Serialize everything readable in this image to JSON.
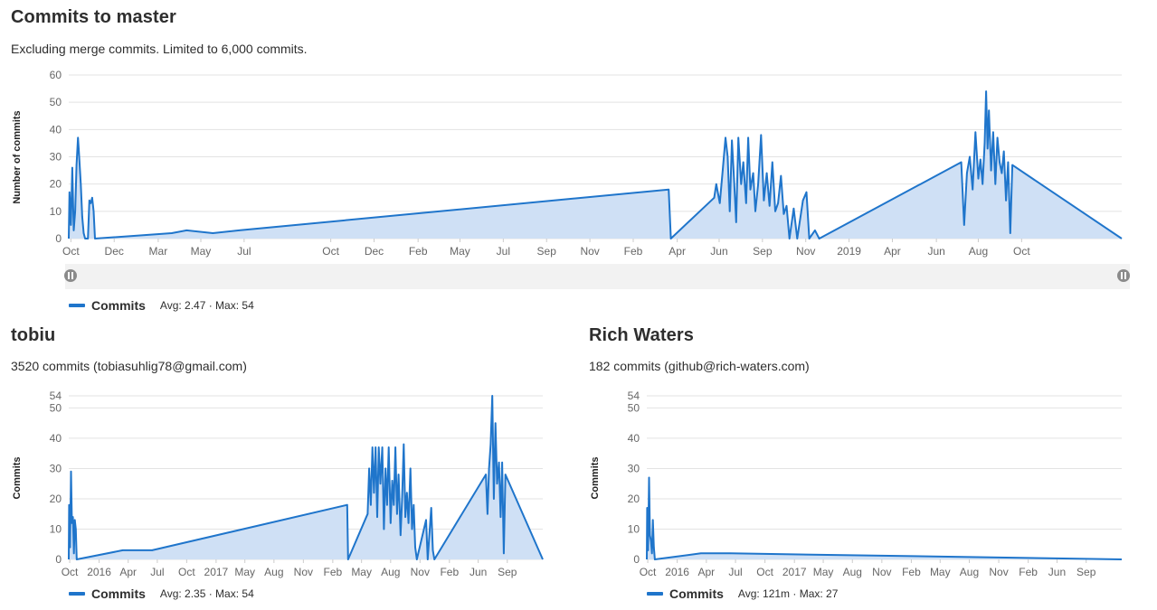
{
  "master": {
    "title": "Commits to master",
    "subtitle": "Excluding merge commits. Limited to 6,000 commits.",
    "legend_name": "Commits",
    "legend_stats": "Avg: 2.47 · Max: 54"
  },
  "tobiu": {
    "title": "tobiu",
    "subtitle": "3520 commits (tobiasuhlig78@gmail.com)",
    "legend_name": "Commits",
    "legend_stats": "Avg: 2.35 · Max: 54"
  },
  "rich": {
    "title": "Rich Waters",
    "subtitle": "182 commits (github@rich-waters.com)",
    "legend_name": "Commits",
    "legend_stats": "Avg: 121m · Max: 27"
  },
  "colors": {
    "line": "#1f75cb",
    "area": "#cfe0f5",
    "grid": "#e3e3e3",
    "zoom_bg": "#f0f0f0"
  },
  "chart_data": [
    {
      "type": "area",
      "ylabel": "Number of commits",
      "ylim": [
        0,
        60
      ],
      "yticks": [
        0,
        10,
        20,
        30,
        40,
        50,
        60
      ],
      "xlim": [
        "2015-09-28",
        "2019-10-20"
      ],
      "xticks": [
        {
          "date": "2015-10-01",
          "label": "Oct"
        },
        {
          "date": "2015-12-01",
          "label": "Dec"
        },
        {
          "date": "2016-02-01",
          "label": "Mar"
        },
        {
          "date": "2016-04-01",
          "label": "May"
        },
        {
          "date": "2016-06-01",
          "label": "Jul"
        },
        {
          "date": "2016-10-01",
          "label": "Oct"
        },
        {
          "date": "2016-12-01",
          "label": "Dec"
        },
        {
          "date": "2017-02-01",
          "label": "Feb"
        },
        {
          "date": "2017-04-01",
          "label": "May"
        },
        {
          "date": "2017-06-01",
          "label": "Jul"
        },
        {
          "date": "2017-08-01",
          "label": "Sep"
        },
        {
          "date": "2017-10-01",
          "label": "Nov"
        },
        {
          "date": "2017-12-01",
          "label": "Feb"
        },
        {
          "date": "2018-02-01",
          "label": "Apr"
        },
        {
          "date": "2018-04-01",
          "label": "Jun"
        },
        {
          "date": "2018-06-01",
          "label": "Sep"
        },
        {
          "date": "2018-08-01",
          "label": "Nov"
        },
        {
          "date": "2018-10-01",
          "label": "2019"
        },
        {
          "date": "2018-12-01",
          "label": "Apr"
        },
        {
          "date": "2019-02-01",
          "label": "Jun"
        },
        {
          "date": "2019-04-01",
          "label": "Aug"
        },
        {
          "date": "2019-06-01",
          "label": "Oct"
        }
      ],
      "series": [
        {
          "name": "Commits",
          "points": [
            [
              "2015-09-29",
              17
            ],
            [
              "2015-10-01",
              5
            ],
            [
              "2015-10-03",
              26
            ],
            [
              "2015-10-05",
              3
            ],
            [
              "2015-10-07",
              10
            ],
            [
              "2015-10-09",
              27
            ],
            [
              "2015-10-11",
              37
            ],
            [
              "2015-10-12",
              33
            ],
            [
              "2015-10-14",
              24
            ],
            [
              "2015-10-15",
              20
            ],
            [
              "2015-10-17",
              8
            ],
            [
              "2015-10-19",
              2
            ],
            [
              "2015-10-21",
              0
            ],
            [
              "2015-10-25",
              0
            ],
            [
              "2015-10-27",
              14
            ],
            [
              "2015-10-29",
              13
            ],
            [
              "2015-10-31",
              15
            ],
            [
              "2015-11-02",
              10
            ],
            [
              "2015-11-04",
              0
            ],
            [
              "2016-02-20",
              2
            ],
            [
              "2016-03-12",
              3
            ],
            [
              "2016-04-18",
              2
            ],
            [
              "2016-05-25",
              3
            ],
            [
              "2018-01-20",
              18
            ],
            [
              "2018-01-23",
              0
            ],
            [
              "2018-03-25",
              15
            ],
            [
              "2018-03-28",
              20
            ],
            [
              "2018-04-02",
              13
            ],
            [
              "2018-04-06",
              25
            ],
            [
              "2018-04-10",
              37
            ],
            [
              "2018-04-13",
              30
            ],
            [
              "2018-04-16",
              10
            ],
            [
              "2018-04-19",
              36
            ],
            [
              "2018-04-22",
              22
            ],
            [
              "2018-04-25",
              6
            ],
            [
              "2018-04-28",
              37
            ],
            [
              "2018-05-02",
              20
            ],
            [
              "2018-05-05",
              28
            ],
            [
              "2018-05-09",
              13
            ],
            [
              "2018-05-12",
              37
            ],
            [
              "2018-05-15",
              18
            ],
            [
              "2018-05-19",
              24
            ],
            [
              "2018-05-22",
              10
            ],
            [
              "2018-05-26",
              20
            ],
            [
              "2018-05-30",
              38
            ],
            [
              "2018-06-03",
              14
            ],
            [
              "2018-06-07",
              24
            ],
            [
              "2018-06-11",
              12
            ],
            [
              "2018-06-15",
              28
            ],
            [
              "2018-06-19",
              10
            ],
            [
              "2018-06-23",
              13
            ],
            [
              "2018-06-27",
              23
            ],
            [
              "2018-07-01",
              9
            ],
            [
              "2018-07-05",
              12
            ],
            [
              "2018-07-09",
              0
            ],
            [
              "2018-07-15",
              11
            ],
            [
              "2018-07-20",
              0
            ],
            [
              "2018-07-28",
              14
            ],
            [
              "2018-08-02",
              17
            ],
            [
              "2018-08-06",
              0
            ],
            [
              "2018-08-14",
              3
            ],
            [
              "2018-08-20",
              0
            ],
            [
              "2019-03-08",
              28
            ],
            [
              "2019-03-12",
              5
            ],
            [
              "2019-03-16",
              24
            ],
            [
              "2019-03-20",
              30
            ],
            [
              "2019-03-24",
              18
            ],
            [
              "2019-03-28",
              39
            ],
            [
              "2019-04-01",
              22
            ],
            [
              "2019-04-04",
              29
            ],
            [
              "2019-04-07",
              20
            ],
            [
              "2019-04-10",
              35
            ],
            [
              "2019-04-12",
              54
            ],
            [
              "2019-04-14",
              33
            ],
            [
              "2019-04-16",
              47
            ],
            [
              "2019-04-19",
              25
            ],
            [
              "2019-04-22",
              39
            ],
            [
              "2019-04-25",
              20
            ],
            [
              "2019-04-28",
              37
            ],
            [
              "2019-05-01",
              28
            ],
            [
              "2019-05-04",
              24
            ],
            [
              "2019-05-07",
              32
            ],
            [
              "2019-05-10",
              14
            ],
            [
              "2019-05-13",
              28
            ],
            [
              "2019-05-16",
              2
            ],
            [
              "2019-05-19",
              27
            ]
          ]
        }
      ]
    },
    {
      "type": "area",
      "ylabel": "Commits",
      "ylim": [
        0,
        54
      ],
      "yticks": [
        0,
        10,
        20,
        30,
        40,
        50,
        54
      ],
      "xlim": [
        "2015-09-28",
        "2019-10-20"
      ],
      "xticks": [
        {
          "date": "2015-10-01",
          "label": "Oct"
        },
        {
          "date": "2016-01-01",
          "label": "2016"
        },
        {
          "date": "2016-04-01",
          "label": "Apr"
        },
        {
          "date": "2016-07-01",
          "label": "Jul"
        },
        {
          "date": "2016-10-01",
          "label": "Oct"
        },
        {
          "date": "2017-01-01",
          "label": "2017"
        },
        {
          "date": "2017-04-01",
          "label": "May"
        },
        {
          "date": "2017-07-01",
          "label": "Aug"
        },
        {
          "date": "2017-10-01",
          "label": "Nov"
        },
        {
          "date": "2018-01-01",
          "label": "Feb"
        },
        {
          "date": "2018-04-01",
          "label": "May"
        },
        {
          "date": "2018-07-01",
          "label": "Aug"
        },
        {
          "date": "2018-10-01",
          "label": "Nov"
        },
        {
          "date": "2019-01-01",
          "label": "Feb"
        },
        {
          "date": "2019-04-01",
          "label": "Jun"
        },
        {
          "date": "2019-07-01",
          "label": "Sep"
        }
      ],
      "series": [
        {
          "name": "Commits",
          "points": [
            [
              "2015-09-29",
              18
            ],
            [
              "2015-10-02",
              4
            ],
            [
              "2015-10-05",
              29
            ],
            [
              "2015-10-08",
              12
            ],
            [
              "2015-10-11",
              14
            ],
            [
              "2015-10-14",
              2
            ],
            [
              "2015-10-17",
              13
            ],
            [
              "2015-10-20",
              10
            ],
            [
              "2015-10-23",
              0
            ],
            [
              "2016-03-15",
              3
            ],
            [
              "2016-06-15",
              3
            ],
            [
              "2018-02-15",
              18
            ],
            [
              "2018-02-18",
              0
            ],
            [
              "2018-04-20",
              15
            ],
            [
              "2018-04-25",
              30
            ],
            [
              "2018-04-30",
              18
            ],
            [
              "2018-05-05",
              37
            ],
            [
              "2018-05-10",
              22
            ],
            [
              "2018-05-15",
              37
            ],
            [
              "2018-05-20",
              14
            ],
            [
              "2018-05-25",
              37
            ],
            [
              "2018-05-30",
              25
            ],
            [
              "2018-06-05",
              37
            ],
            [
              "2018-06-10",
              10
            ],
            [
              "2018-06-15",
              30
            ],
            [
              "2018-06-20",
              18
            ],
            [
              "2018-06-25",
              37
            ],
            [
              "2018-07-01",
              12
            ],
            [
              "2018-07-06",
              26
            ],
            [
              "2018-07-11",
              18
            ],
            [
              "2018-07-16",
              37
            ],
            [
              "2018-07-21",
              15
            ],
            [
              "2018-07-26",
              28
            ],
            [
              "2018-08-01",
              8
            ],
            [
              "2018-08-06",
              20
            ],
            [
              "2018-08-11",
              38
            ],
            [
              "2018-08-16",
              14
            ],
            [
              "2018-08-21",
              22
            ],
            [
              "2018-08-26",
              12
            ],
            [
              "2018-09-01",
              30
            ],
            [
              "2018-09-06",
              10
            ],
            [
              "2018-09-11",
              18
            ],
            [
              "2018-09-16",
              4
            ],
            [
              "2018-09-21",
              0
            ],
            [
              "2018-10-20",
              13
            ],
            [
              "2018-10-25",
              0
            ],
            [
              "2018-11-05",
              17
            ],
            [
              "2018-11-10",
              3
            ],
            [
              "2018-11-15",
              0
            ],
            [
              "2019-04-25",
              28
            ],
            [
              "2019-04-30",
              15
            ],
            [
              "2019-05-05",
              30
            ],
            [
              "2019-05-10",
              38
            ],
            [
              "2019-05-15",
              54
            ],
            [
              "2019-05-20",
              20
            ],
            [
              "2019-05-25",
              45
            ],
            [
              "2019-05-30",
              25
            ],
            [
              "2019-06-05",
              32
            ],
            [
              "2019-06-10",
              14
            ],
            [
              "2019-06-15",
              32
            ],
            [
              "2019-06-20",
              2
            ],
            [
              "2019-06-25",
              28
            ]
          ]
        }
      ]
    },
    {
      "type": "area",
      "ylabel": "Commits",
      "ylim": [
        0,
        54
      ],
      "yticks": [
        0,
        10,
        20,
        30,
        40,
        50,
        54
      ],
      "xlim": [
        "2015-09-28",
        "2019-10-20"
      ],
      "xticks": [
        {
          "date": "2015-10-01",
          "label": "Oct"
        },
        {
          "date": "2016-01-01",
          "label": "2016"
        },
        {
          "date": "2016-04-01",
          "label": "Apr"
        },
        {
          "date": "2016-07-01",
          "label": "Jul"
        },
        {
          "date": "2016-10-01",
          "label": "Oct"
        },
        {
          "date": "2017-01-01",
          "label": "2017"
        },
        {
          "date": "2017-04-01",
          "label": "May"
        },
        {
          "date": "2017-07-01",
          "label": "Aug"
        },
        {
          "date": "2017-10-01",
          "label": "Nov"
        },
        {
          "date": "2018-01-01",
          "label": "Feb"
        },
        {
          "date": "2018-04-01",
          "label": "May"
        },
        {
          "date": "2018-07-01",
          "label": "Aug"
        },
        {
          "date": "2018-10-01",
          "label": "Nov"
        },
        {
          "date": "2019-01-01",
          "label": "Feb"
        },
        {
          "date": "2019-04-01",
          "label": "Jun"
        },
        {
          "date": "2019-07-01",
          "label": "Sep"
        }
      ],
      "series": [
        {
          "name": "Commits",
          "points": [
            [
              "2015-09-29",
              17
            ],
            [
              "2015-10-02",
              3
            ],
            [
              "2015-10-05",
              27
            ],
            [
              "2015-10-08",
              8
            ],
            [
              "2015-10-11",
              6
            ],
            [
              "2015-10-14",
              2
            ],
            [
              "2015-10-17",
              13
            ],
            [
              "2015-10-20",
              4
            ],
            [
              "2015-10-23",
              0
            ],
            [
              "2016-03-15",
              2
            ],
            [
              "2016-06-15",
              2
            ]
          ]
        }
      ]
    }
  ]
}
